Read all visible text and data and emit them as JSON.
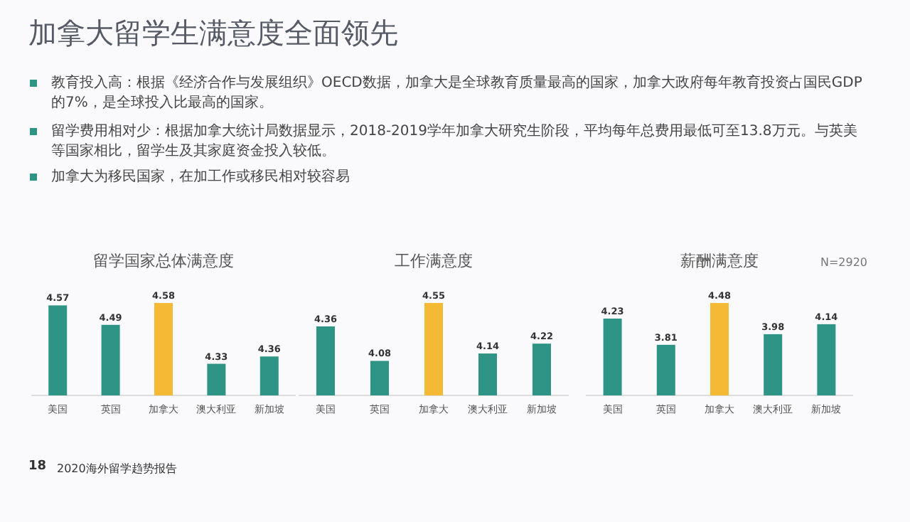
{
  "chart_data": [
    {
      "type": "other",
      "title": "加拿大留学生满意度全面领先",
      "annotations": [
        "教育投入高：根据《经济合作与发展组织》OECD数据，加拿大是全球教育质量最高的国家，加拿大政府每年教育投资占国民GDP的7%，是全球投入比最高的国家。",
        "留学费用相对少：根据加拿大统计局数据显示，2018-2019学年加拿大研究生阶段，平均每年总费用最低可至13.8万元。与英美等国家相比，留学生及其家庭资金投入较低。",
        "加拿大为移民国家，在加工作或移民相对较容易",
        "18",
        "2020海外留学趋势报告"
      ]
    },
    {
      "type": "bar",
      "title": "留学国家总体满意度",
      "categories": [
        "美国",
        "英国",
        "加拿大",
        "澳大利亚",
        "新加坡"
      ],
      "values": [
        4.57,
        4.49,
        4.58,
        4.33,
        4.36
      ],
      "colors": [
        "#2e9486",
        "#2e9486",
        "#f4b935",
        "#2e9486",
        "#2e9486"
      ],
      "ylim": [
        4.2,
        4.58
      ],
      "data_labels": true,
      "tick_labels": "x"
    },
    {
      "type": "bar",
      "title": "工作满意度",
      "categories": [
        "美国",
        "英国",
        "加拿大",
        "澳大利亚",
        "新加坡"
      ],
      "values": [
        4.36,
        4.08,
        4.55,
        4.14,
        4.22
      ],
      "colors": [
        "#2e9486",
        "#2e9486",
        "#f4b935",
        "#2e9486",
        "#2e9486"
      ],
      "ylim": [
        3.8,
        4.55
      ],
      "data_labels": true,
      "tick_labels": "x"
    },
    {
      "type": "bar",
      "title": "薪酬满意度",
      "categories": [
        "美国",
        "英国",
        "加拿大",
        "澳大利亚",
        "新加坡"
      ],
      "values": [
        4.23,
        3.81,
        4.48,
        3.98,
        4.14
      ],
      "colors": [
        "#2e9486",
        "#2e9486",
        "#f4b935",
        "#2e9486",
        "#2e9486"
      ],
      "ylim": [
        3.0,
        4.48
      ],
      "data_labels": true,
      "tick_labels": "x",
      "annotations": [
        "N=2920"
      ]
    }
  ]
}
